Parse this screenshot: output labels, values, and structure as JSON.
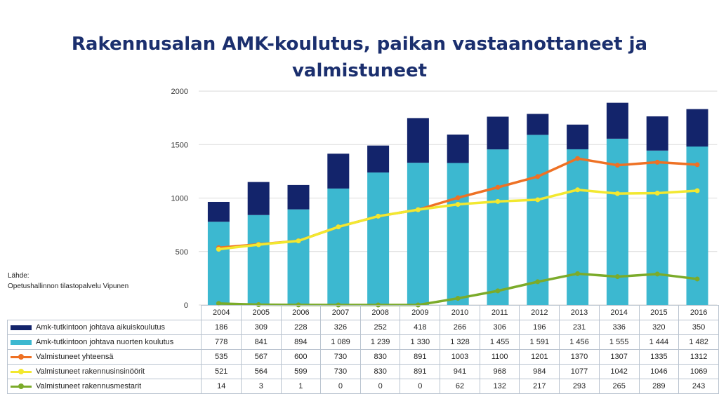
{
  "chart_data": {
    "type": "bar",
    "title_lines": [
      "Rakennusalan AMK-koulutus, paikan vastaanottaneet ja",
      "valmistuneet"
    ],
    "years": [
      "2004",
      "2005",
      "2006",
      "2007",
      "2008",
      "2009",
      "2010",
      "2011",
      "2012",
      "2013",
      "2014",
      "2015",
      "2016"
    ],
    "ylim": [
      0,
      2000
    ],
    "yticks": [
      "0",
      "500",
      "1000",
      "1500",
      "2000"
    ],
    "grid": true,
    "series": [
      {
        "name": "Amk-tutkintoon johtava aikuiskoulutus",
        "kind": "stacked-bar",
        "color": "#13246b",
        "values": [
          186,
          309,
          228,
          326,
          252,
          418,
          266,
          306,
          196,
          231,
          336,
          320,
          350
        ],
        "labels": [
          "186",
          "309",
          "228",
          "326",
          "252",
          "418",
          "266",
          "306",
          "196",
          "231",
          "336",
          "320",
          "350"
        ]
      },
      {
        "name": "Amk-tutkintoon johtava nuorten koulutus",
        "kind": "stacked-bar",
        "color": "#3cb8d0",
        "values": [
          778,
          841,
          894,
          1089,
          1239,
          1330,
          1328,
          1455,
          1591,
          1456,
          1555,
          1444,
          1482
        ],
        "labels": [
          "778",
          "841",
          "894",
          "1 089",
          "1 239",
          "1 330",
          "1 328",
          "1 455",
          "1 591",
          "1 456",
          "1 555",
          "1 444",
          "1 482"
        ]
      },
      {
        "name": "Valmistuneet yhteensä",
        "kind": "line",
        "color": "#ee7124",
        "values": [
          535,
          567,
          600,
          730,
          830,
          891,
          1003,
          1100,
          1201,
          1370,
          1307,
          1335,
          1312
        ],
        "labels": [
          "535",
          "567",
          "600",
          "730",
          "830",
          "891",
          "1003",
          "1100",
          "1201",
          "1370",
          "1307",
          "1335",
          "1312"
        ]
      },
      {
        "name": "Valmistuneet rakennusinsinöörit",
        "kind": "line",
        "color": "#f2e830",
        "values": [
          521,
          564,
          599,
          730,
          830,
          891,
          941,
          968,
          984,
          1077,
          1042,
          1046,
          1069
        ],
        "labels": [
          "521",
          "564",
          "599",
          "730",
          "830",
          "891",
          "941",
          "968",
          "984",
          "1077",
          "1042",
          "1046",
          "1069"
        ]
      },
      {
        "name": "Valmistuneet rakennusmestarit",
        "kind": "line",
        "color": "#7bab2a",
        "values": [
          14,
          3,
          1,
          0,
          0,
          0,
          62,
          132,
          217,
          293,
          265,
          289,
          243
        ],
        "labels": [
          "14",
          "3",
          "1",
          "0",
          "0",
          "0",
          "62",
          "132",
          "217",
          "293",
          "265",
          "289",
          "243"
        ]
      }
    ]
  },
  "source": {
    "label": "Lähde:",
    "text": "Opetushallinnon tilastopalvelu Vipunen"
  }
}
